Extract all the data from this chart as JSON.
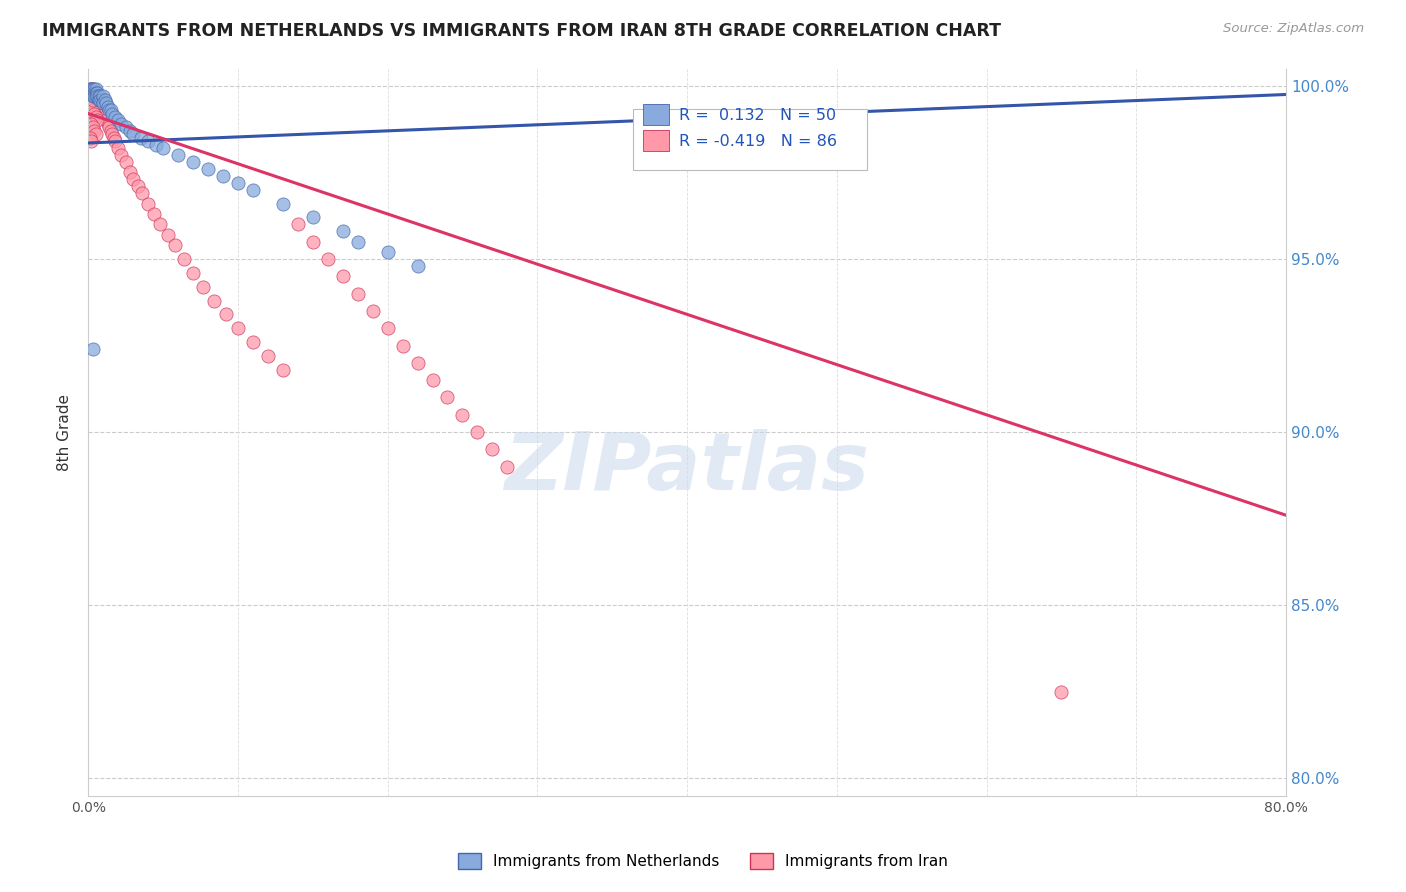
{
  "title": "IMMIGRANTS FROM NETHERLANDS VS IMMIGRANTS FROM IRAN 8TH GRADE CORRELATION CHART",
  "source": "Source: ZipAtlas.com",
  "ylabel_left": "8th Grade",
  "x_min": 0.0,
  "x_max": 0.8,
  "y_min": 0.795,
  "y_max": 1.005,
  "netherlands_color": "#88AADD",
  "iran_color": "#FF99AA",
  "netherlands_edge": "#4466AA",
  "iran_edge": "#CC3355",
  "trendline_netherlands_color": "#3355AA",
  "trendline_iran_color": "#DD3366",
  "legend_label_netherlands": "Immigrants from Netherlands",
  "legend_label_iran": "Immigrants from Iran",
  "R_netherlands": 0.132,
  "N_netherlands": 50,
  "R_iran": -0.419,
  "N_iran": 86,
  "watermark": "ZIPatlas",
  "nl_x": [
    0.001,
    0.002,
    0.002,
    0.003,
    0.003,
    0.003,
    0.004,
    0.004,
    0.004,
    0.005,
    0.005,
    0.005,
    0.006,
    0.006,
    0.007,
    0.007,
    0.008,
    0.008,
    0.009,
    0.01,
    0.01,
    0.011,
    0.012,
    0.013,
    0.014,
    0.015,
    0.016,
    0.018,
    0.02,
    0.022,
    0.025,
    0.028,
    0.03,
    0.035,
    0.04,
    0.045,
    0.05,
    0.06,
    0.07,
    0.08,
    0.09,
    0.1,
    0.11,
    0.13,
    0.15,
    0.17,
    0.2,
    0.22,
    0.003,
    0.18
  ],
  "nl_y": [
    0.999,
    0.999,
    0.998,
    0.999,
    0.998,
    0.997,
    0.999,
    0.998,
    0.997,
    0.999,
    0.998,
    0.997,
    0.998,
    0.997,
    0.997,
    0.996,
    0.997,
    0.996,
    0.996,
    0.997,
    0.995,
    0.996,
    0.995,
    0.994,
    0.993,
    0.993,
    0.992,
    0.991,
    0.99,
    0.989,
    0.988,
    0.987,
    0.986,
    0.985,
    0.984,
    0.983,
    0.982,
    0.98,
    0.978,
    0.976,
    0.974,
    0.972,
    0.97,
    0.966,
    0.962,
    0.958,
    0.952,
    0.948,
    0.924,
    0.955
  ],
  "ir_x": [
    0.001,
    0.001,
    0.002,
    0.002,
    0.002,
    0.002,
    0.003,
    0.003,
    0.003,
    0.003,
    0.004,
    0.004,
    0.004,
    0.004,
    0.005,
    0.005,
    0.005,
    0.006,
    0.006,
    0.006,
    0.007,
    0.007,
    0.007,
    0.008,
    0.008,
    0.009,
    0.009,
    0.01,
    0.01,
    0.011,
    0.012,
    0.013,
    0.014,
    0.015,
    0.016,
    0.017,
    0.018,
    0.02,
    0.022,
    0.025,
    0.028,
    0.03,
    0.033,
    0.036,
    0.04,
    0.044,
    0.048,
    0.053,
    0.058,
    0.064,
    0.07,
    0.077,
    0.084,
    0.092,
    0.1,
    0.11,
    0.12,
    0.13,
    0.14,
    0.15,
    0.16,
    0.17,
    0.18,
    0.19,
    0.2,
    0.21,
    0.22,
    0.23,
    0.24,
    0.25,
    0.26,
    0.27,
    0.28,
    0.002,
    0.003,
    0.004,
    0.005,
    0.006,
    0.002,
    0.003,
    0.004,
    0.005,
    0.001,
    0.002,
    0.65,
    0.003
  ],
  "ir_y": [
    0.999,
    0.998,
    0.999,
    0.998,
    0.997,
    0.996,
    0.999,
    0.998,
    0.997,
    0.996,
    0.998,
    0.997,
    0.996,
    0.995,
    0.998,
    0.997,
    0.996,
    0.997,
    0.996,
    0.995,
    0.996,
    0.995,
    0.994,
    0.995,
    0.994,
    0.994,
    0.993,
    0.993,
    0.992,
    0.991,
    0.99,
    0.989,
    0.988,
    0.987,
    0.986,
    0.985,
    0.984,
    0.982,
    0.98,
    0.978,
    0.975,
    0.973,
    0.971,
    0.969,
    0.966,
    0.963,
    0.96,
    0.957,
    0.954,
    0.95,
    0.946,
    0.942,
    0.938,
    0.934,
    0.93,
    0.926,
    0.922,
    0.918,
    0.96,
    0.955,
    0.95,
    0.945,
    0.94,
    0.935,
    0.93,
    0.925,
    0.92,
    0.915,
    0.91,
    0.905,
    0.9,
    0.895,
    0.89,
    0.994,
    0.993,
    0.992,
    0.991,
    0.99,
    0.989,
    0.988,
    0.987,
    0.986,
    0.985,
    0.984,
    0.825,
    0.996
  ],
  "nl_trendline_x": [
    0.0,
    0.8
  ],
  "nl_trendline_y": [
    0.9835,
    0.9975
  ],
  "ir_trendline_x": [
    0.0,
    0.8
  ],
  "ir_trendline_y": [
    0.992,
    0.876
  ]
}
